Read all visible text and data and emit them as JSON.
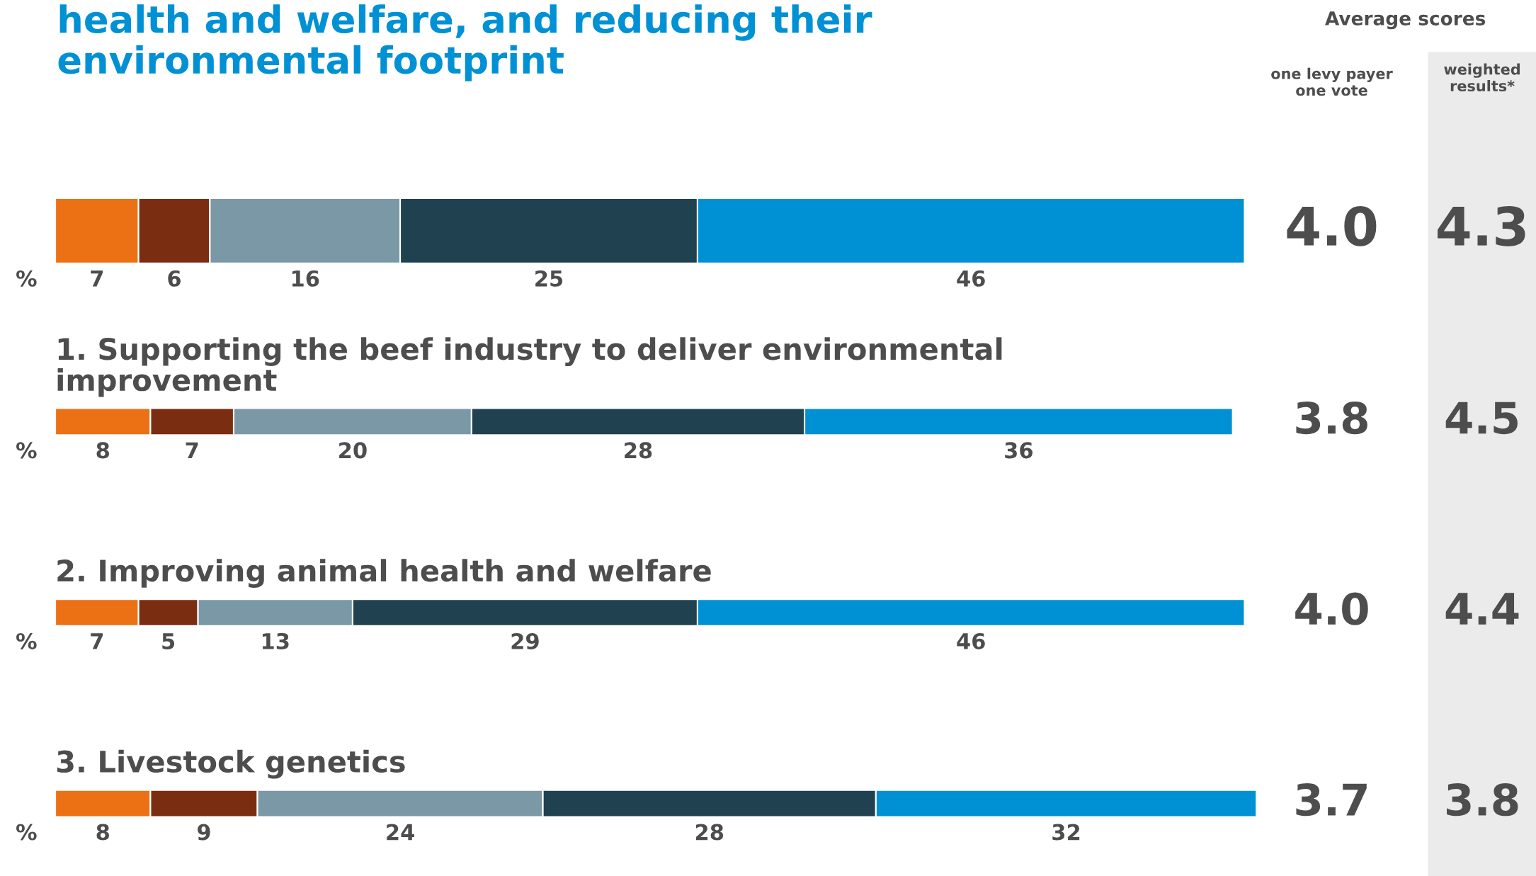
{
  "chart_data": {
    "type": "bar",
    "orientation": "horizontal",
    "stacked": true,
    "data_labels": true,
    "title": "health and welfare, and reducing their\nenvironmental footprint",
    "categories": [
      null,
      "1. Supporting the beef industry to deliver environmental\nimprovement",
      "2. Improving animal health and welfare",
      "3. Livestock genetics"
    ],
    "series": [
      {
        "color": "#ec7014",
        "values": [
          7,
          8,
          7,
          8
        ]
      },
      {
        "color": "#7b2d12",
        "values": [
          6,
          7,
          5,
          9
        ]
      },
      {
        "color": "#7a98a6",
        "values": [
          16,
          20,
          13,
          24
        ]
      },
      {
        "color": "#20414f",
        "values": [
          25,
          28,
          29,
          28
        ]
      },
      {
        "color": "#0091d5",
        "values": [
          46,
          36,
          46,
          32
        ]
      }
    ],
    "annotations": [
      "Average scores",
      "one levy payer\none vote",
      "weighted\nresults*",
      "%",
      "4.0",
      "4.3",
      "%",
      "3.8",
      "4.5",
      "%",
      "4.0",
      "4.4",
      "%",
      "3.7",
      "3.8"
    ]
  }
}
